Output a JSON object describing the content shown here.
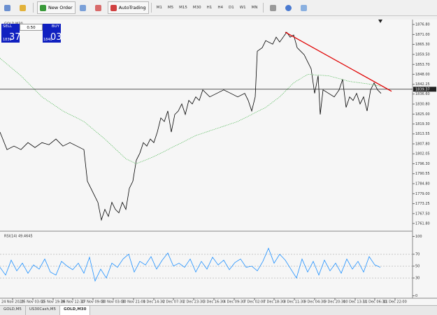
{
  "toolbar": {
    "new_order": "New Order",
    "autotrading": "AutoTrading",
    "timeframes": [
      "M1",
      "M5",
      "M15",
      "M30",
      "H1",
      "H4",
      "D1",
      "W1",
      "MN"
    ]
  },
  "trade_panel": {
    "sell": "SELL",
    "buy": "BUY",
    "lot": "0.50",
    "sell_price": "1839",
    "sell_pips": "37",
    "buy_price": "1840",
    "buy_pips": "03"
  },
  "chart_data": [
    {
      "type": "line",
      "title": "GOLD,M30",
      "xlim": [
        0,
        590
      ],
      "ylim": [
        1758.55,
        1879.64
      ],
      "xticks": [
        {
          "value": 18,
          "label": "24 Nov 2020"
        },
        {
          "value": 47,
          "label": "25 Nov 03:00"
        },
        {
          "value": 76,
          "label": "25 Nov 19:30"
        },
        {
          "value": 104,
          "label": "26 Nov 12:30"
        },
        {
          "value": 133,
          "label": "27 Nov 09:00"
        },
        {
          "value": 162,
          "label": "30 Nov 03:00"
        },
        {
          "value": 191,
          "label": "30 Nov 21:00"
        },
        {
          "value": 220,
          "label": "1 Dec 14:30"
        },
        {
          "value": 248,
          "label": "2 Dec 07:30"
        },
        {
          "value": 277,
          "label": "2 Dec 23:30"
        },
        {
          "value": 306,
          "label": "3 Dec 16:30"
        },
        {
          "value": 335,
          "label": "4 Dec 09:30"
        },
        {
          "value": 364,
          "label": "7 Dec 02:00"
        },
        {
          "value": 392,
          "label": "7 Dec 18:30"
        },
        {
          "value": 421,
          "label": "8 Dec 11:30"
        },
        {
          "value": 450,
          "label": "9 Dec 04:30"
        },
        {
          "value": 479,
          "label": "9 Dec 20:30"
        },
        {
          "value": 508,
          "label": "10 Dec 13:30"
        },
        {
          "value": 536,
          "label": "11 Dec 06:30"
        },
        {
          "value": 565,
          "label": "11 Dec 22:00"
        }
      ],
      "yticks": [
        {
          "value": 1876.8,
          "label": "1876.80"
        },
        {
          "value": 1871,
          "label": "1871.00"
        },
        {
          "value": 1865.3,
          "label": "1865.30"
        },
        {
          "value": 1859.5,
          "label": "1859.50"
        },
        {
          "value": 1853.7,
          "label": "1853.70"
        },
        {
          "value": 1848,
          "label": "1848.00"
        },
        {
          "value": 1842.25,
          "label": "1842.25"
        },
        {
          "value": 1836.6,
          "label": "1836.60"
        },
        {
          "value": 1830.8,
          "label": "1830.80"
        },
        {
          "value": 1825,
          "label": "1825.00"
        },
        {
          "value": 1819.3,
          "label": "1819.30"
        },
        {
          "value": 1813.55,
          "label": "1813.55"
        },
        {
          "value": 1807.8,
          "label": "1807.80"
        },
        {
          "value": 1802.05,
          "label": "1802.05"
        },
        {
          "value": 1796.3,
          "label": "1796.30"
        },
        {
          "value": 1790.55,
          "label": "1790.55"
        },
        {
          "value": 1784.8,
          "label": "1784.80"
        },
        {
          "value": 1779,
          "label": "1779.00"
        },
        {
          "value": 1773.25,
          "label": "1773.25"
        },
        {
          "value": 1767.5,
          "label": "1767.50"
        },
        {
          "value": 1761.8,
          "label": "1761.80"
        }
      ],
      "series": [
        {
          "color": "#000000",
          "style": "solid",
          "x": [
            0,
            10,
            20,
            30,
            40,
            50,
            60,
            70,
            80,
            90,
            100,
            110,
            120,
            125,
            130,
            135,
            140,
            145,
            150,
            155,
            160,
            165,
            170,
            175,
            180,
            185,
            190,
            195,
            200,
            205,
            210,
            215,
            220,
            225,
            230,
            235,
            240,
            245,
            250,
            255,
            260,
            265,
            270,
            275,
            280,
            285,
            290,
            300,
            310,
            320,
            330,
            340,
            350,
            355,
            360,
            365,
            368,
            375,
            380,
            390,
            395,
            400,
            405,
            410,
            415,
            420,
            425,
            430,
            435,
            440,
            445,
            450,
            455,
            458,
            462,
            470,
            478,
            485,
            490,
            495,
            500,
            505,
            510,
            515,
            520,
            525,
            530,
            535,
            540,
            545
          ],
          "values": [
            1814.63,
            1804.47,
            1806.5,
            1804.47,
            1808.53,
            1805.69,
            1808.53,
            1807.31,
            1810.56,
            1806.5,
            1808.53,
            1806.5,
            1804.47,
            1786.18,
            1782.12,
            1778.06,
            1773.99,
            1763.83,
            1769.93,
            1765.87,
            1773.99,
            1769.93,
            1767.9,
            1773.99,
            1769.93,
            1782.12,
            1786.18,
            1798.37,
            1802.44,
            1808.53,
            1806.5,
            1810.56,
            1808.53,
            1814.63,
            1822.75,
            1820.72,
            1826.82,
            1814.63,
            1824.78,
            1826.82,
            1830.88,
            1824.78,
            1832.91,
            1830.88,
            1834.94,
            1832.91,
            1839.01,
            1834.94,
            1836.97,
            1839.01,
            1836.97,
            1834.94,
            1836.97,
            1832.91,
            1826.82,
            1834.94,
            1861.35,
            1863.39,
            1867.45,
            1865.42,
            1869.48,
            1866.64,
            1869.48,
            1872.33,
            1869.48,
            1870.7,
            1863.39,
            1861.35,
            1859.32,
            1855.26,
            1851.2,
            1836.97,
            1847.13,
            1824.78,
            1839.01,
            1836.97,
            1834.94,
            1839.01,
            1845.1,
            1828.85,
            1834.94,
            1832.91,
            1836.97,
            1830.88,
            1834.94,
            1826.82,
            1839.01,
            1843.07,
            1839.01,
            1836.97
          ]
        },
        {
          "color": "#3cb043",
          "style": "dotted",
          "x": [
            0,
            30,
            60,
            90,
            120,
            150,
            180,
            195,
            220,
            250,
            280,
            310,
            340,
            360,
            380,
            400,
            420,
            440,
            470,
            500,
            530,
            545
          ],
          "values": [
            1857.29,
            1847.13,
            1834.94,
            1826.82,
            1820.72,
            1810.56,
            1799.18,
            1796.34,
            1800.4,
            1806.5,
            1812.59,
            1816.66,
            1820.72,
            1824.78,
            1828.85,
            1834.94,
            1843.07,
            1847.94,
            1847.13,
            1843.88,
            1842.26,
            1841.04
          ]
        }
      ],
      "current_price": 1839.37,
      "trendline": {
        "color": "#e00000",
        "x": [
          408,
          560
        ],
        "values": [
          1872.33,
          1838.19
        ]
      }
    },
    {
      "type": "line",
      "title": "RSI(14) 49.4645",
      "xlim": [
        0,
        590
      ],
      "ylim": [
        -4.1,
        106.5
      ],
      "yticks": [
        0,
        30,
        50,
        70,
        100
      ],
      "series": [
        {
          "color": "#1e90ff",
          "style": "solid",
          "x": [
            0,
            8,
            16,
            24,
            32,
            40,
            48,
            56,
            64,
            72,
            80,
            88,
            96,
            104,
            112,
            120,
            128,
            136,
            144,
            152,
            160,
            168,
            176,
            184,
            192,
            200,
            208,
            216,
            224,
            232,
            240,
            248,
            256,
            264,
            272,
            280,
            288,
            296,
            304,
            312,
            320,
            328,
            336,
            344,
            352,
            360,
            368,
            376,
            384,
            392,
            400,
            408,
            416,
            424,
            432,
            440,
            448,
            456,
            464,
            472,
            480,
            488,
            496,
            504,
            512,
            520,
            528,
            536,
            544
          ],
          "values": [
            48,
            35,
            60,
            42,
            55,
            38,
            52,
            45,
            62,
            40,
            35,
            58,
            50,
            44,
            55,
            38,
            65,
            25,
            45,
            30,
            55,
            48,
            62,
            70,
            40,
            58,
            52,
            66,
            45,
            60,
            72,
            50,
            55,
            48,
            62,
            40,
            58,
            45,
            65,
            52,
            60,
            44,
            56,
            62,
            48,
            50,
            42,
            58,
            80,
            55,
            70,
            60,
            45,
            30,
            62,
            40,
            58,
            35,
            60,
            42,
            55,
            38,
            62,
            45,
            58,
            40,
            66,
            52,
            48
          ]
        }
      ]
    }
  ],
  "tabs": [
    "GOLD,M5",
    "US30Cash,M5",
    "GOLD,M30"
  ]
}
